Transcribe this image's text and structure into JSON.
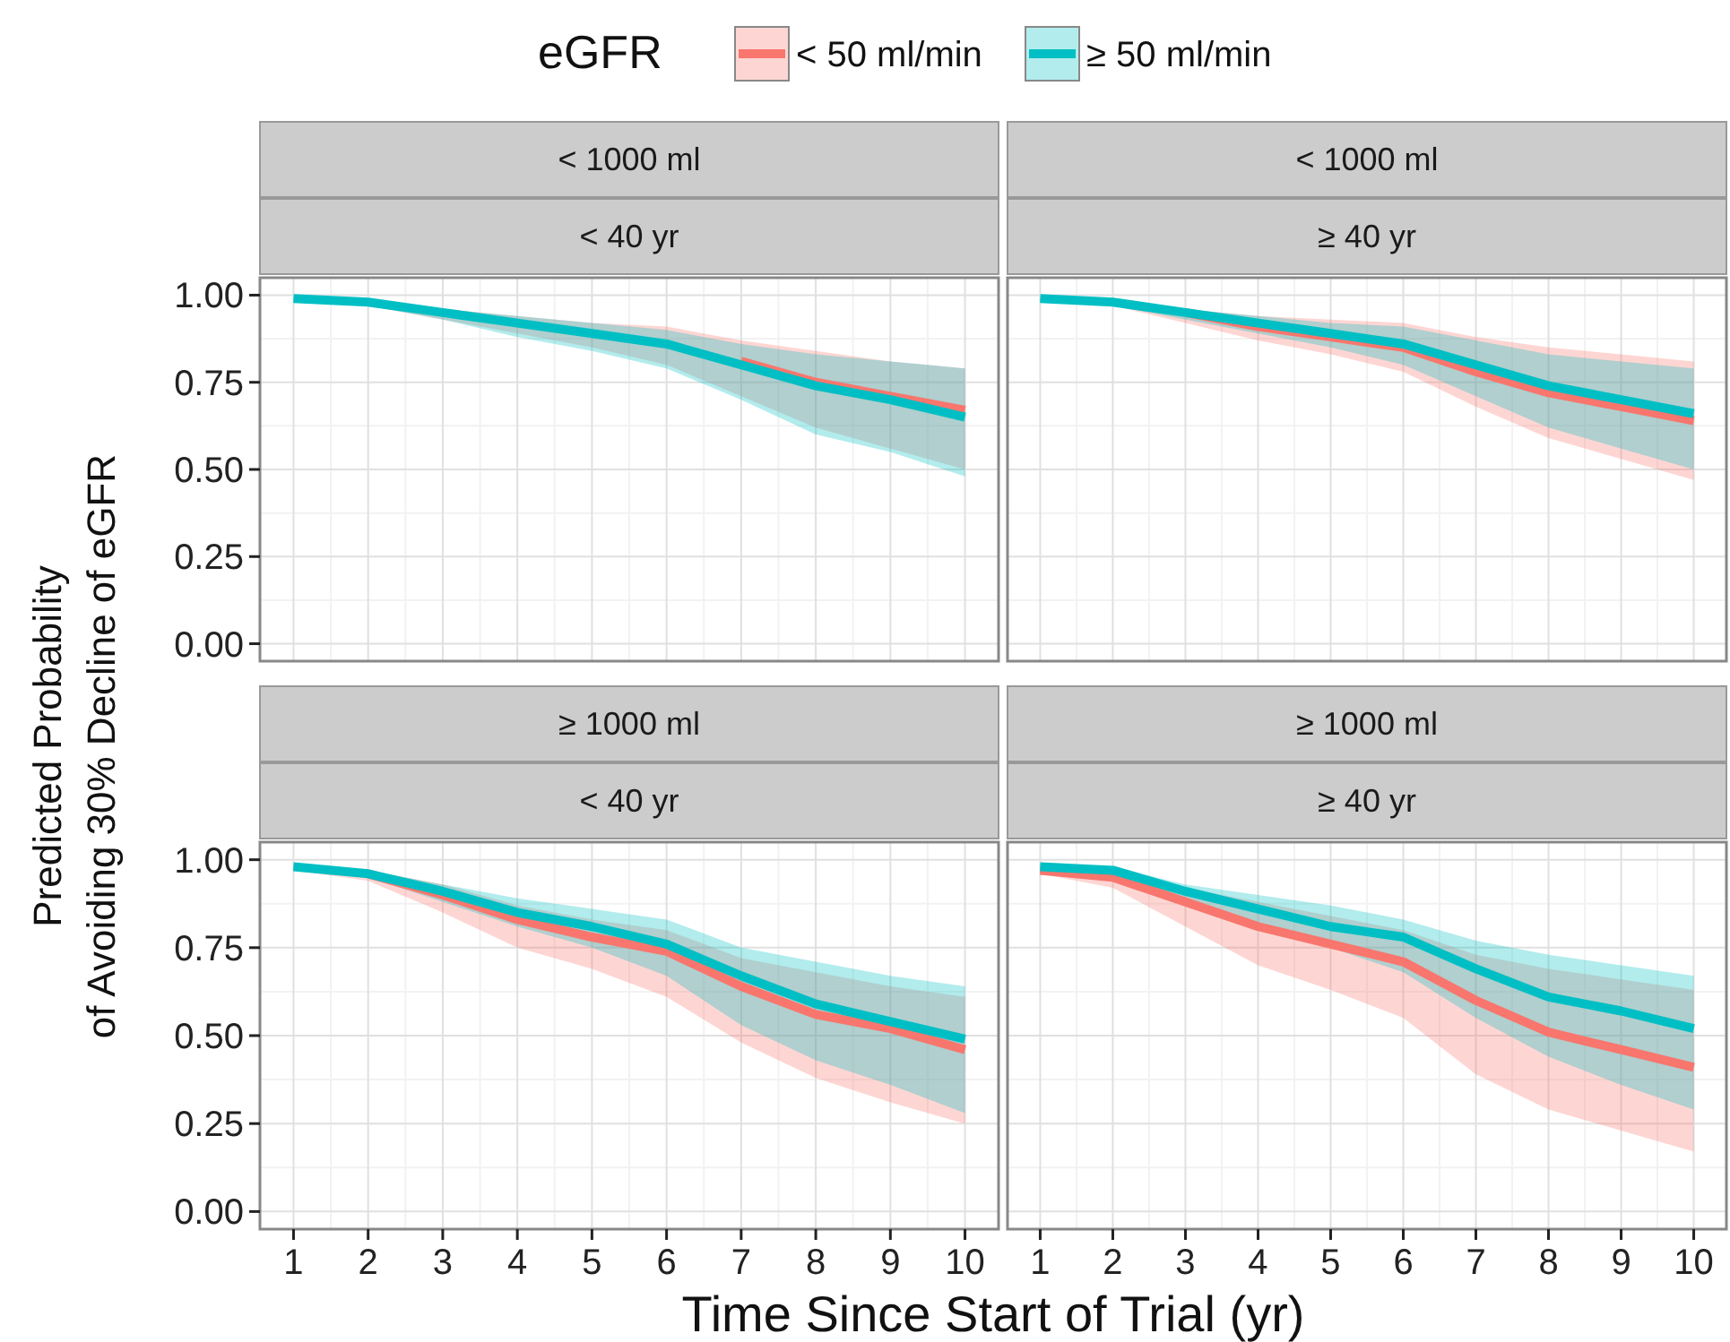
{
  "chart_data": [
    {
      "type": "line",
      "title": "< 1000 ml",
      "subtitle": "< 40 yr",
      "legend_title": "eGFR",
      "legend": "top",
      "grid": true,
      "tick_labels": "y",
      "ylabel": "Predicted Probability\nof Avoiding 30% Decline of eGFR",
      "x": [
        1,
        2,
        3,
        4,
        5,
        6,
        7,
        8,
        9,
        10
      ],
      "xlim": [
        0.55,
        10.45
      ],
      "xticks": [
        1,
        2,
        3,
        4,
        5,
        6,
        7,
        8,
        9,
        10
      ],
      "ylim": [
        -0.05,
        1.05
      ],
      "yticks": [
        {
          "value": 0,
          "label": "0.00"
        },
        {
          "value": 0.25,
          "label": "0.25"
        },
        {
          "value": 0.5,
          "label": "0.50"
        },
        {
          "value": 0.75,
          "label": "0.75"
        },
        {
          "value": 1,
          "label": "1.00"
        }
      ],
      "series": [
        {
          "name": "< 50 ml/min",
          "color": "#f8766d",
          "values": [
            null,
            null,
            null,
            null,
            null,
            null,
            0.81,
            0.75,
            0.71,
            0.67
          ],
          "lower": [
            0.98,
            0.97,
            0.93,
            0.89,
            0.85,
            0.8,
            0.71,
            0.62,
            0.56,
            0.5
          ],
          "upper": [
            0.99,
            0.99,
            0.96,
            0.94,
            0.92,
            0.91,
            0.87,
            0.84,
            0.81,
            0.79
          ]
        },
        {
          "name": "≥ 50 ml/min",
          "color": "#00bfc4",
          "values": [
            0.99,
            0.98,
            0.95,
            0.92,
            0.89,
            0.86,
            0.8,
            0.74,
            0.7,
            0.65
          ],
          "lower": [
            0.98,
            0.97,
            0.93,
            0.88,
            0.84,
            0.79,
            0.7,
            0.6,
            0.55,
            0.48
          ],
          "upper": [
            0.99,
            0.99,
            0.96,
            0.94,
            0.92,
            0.9,
            0.86,
            0.83,
            0.81,
            0.79
          ]
        }
      ]
    },
    {
      "type": "line",
      "title": "< 1000 ml",
      "subtitle": "≥ 40 yr",
      "grid": true,
      "tick_labels": false,
      "x": [
        1,
        2,
        3,
        4,
        5,
        6,
        7,
        8,
        9,
        10
      ],
      "xlim": [
        0.55,
        10.45
      ],
      "xticks": [
        1,
        2,
        3,
        4,
        5,
        6,
        7,
        8,
        9,
        10
      ],
      "ylim": [
        -0.05,
        1.05
      ],
      "yticks": [
        {
          "value": 0,
          "label": null
        },
        {
          "value": 0.25,
          "label": null
        },
        {
          "value": 0.5,
          "label": null
        },
        {
          "value": 0.75,
          "label": null
        },
        {
          "value": 1,
          "label": null
        }
      ],
      "series": [
        {
          "color": "#f8766d",
          "values": [
            null,
            null,
            0.95,
            0.91,
            0.88,
            0.85,
            0.78,
            0.72,
            0.68,
            0.64
          ],
          "lower": [
            0.98,
            0.97,
            0.92,
            0.87,
            0.83,
            0.78,
            0.68,
            0.59,
            0.53,
            0.47
          ],
          "upper": [
            0.99,
            0.99,
            0.96,
            0.94,
            0.93,
            0.92,
            0.88,
            0.85,
            0.83,
            0.81
          ]
        },
        {
          "color": "#00bfc4",
          "values": [
            0.99,
            0.98,
            0.95,
            0.92,
            0.89,
            0.86,
            0.8,
            0.74,
            0.7,
            0.66
          ],
          "lower": [
            0.98,
            0.97,
            0.93,
            0.89,
            0.85,
            0.8,
            0.71,
            0.62,
            0.56,
            0.5
          ],
          "upper": [
            0.99,
            0.99,
            0.96,
            0.94,
            0.92,
            0.91,
            0.87,
            0.83,
            0.81,
            0.79
          ]
        }
      ]
    },
    {
      "type": "line",
      "title": "≥ 1000 ml",
      "subtitle": "< 40 yr",
      "grid": true,
      "xlabel": "Time Since Start of Trial (yr)",
      "x": [
        1,
        2,
        3,
        4,
        5,
        6,
        7,
        8,
        9,
        10
      ],
      "xlim": [
        0.55,
        10.45
      ],
      "xticks": [
        1,
        2,
        3,
        4,
        5,
        6,
        7,
        8,
        9,
        10
      ],
      "ylim": [
        -0.05,
        1.05
      ],
      "yticks": [
        {
          "value": 0,
          "label": "0.00"
        },
        {
          "value": 0.25,
          "label": "0.25"
        },
        {
          "value": 0.5,
          "label": "0.50"
        },
        {
          "value": 0.75,
          "label": "0.75"
        },
        {
          "value": 1,
          "label": "1.00"
        }
      ],
      "series": [
        {
          "color": "#f8766d",
          "values": [
            null,
            0.96,
            0.9,
            0.83,
            0.78,
            0.74,
            0.64,
            0.56,
            0.52,
            0.46
          ],
          "lower": [
            0.97,
            0.94,
            0.85,
            0.75,
            0.69,
            0.61,
            0.48,
            0.38,
            0.31,
            0.25
          ],
          "upper": [
            0.99,
            0.97,
            0.93,
            0.87,
            0.83,
            0.8,
            0.72,
            0.68,
            0.64,
            0.61
          ]
        },
        {
          "color": "#00bfc4",
          "values": [
            0.98,
            0.96,
            0.91,
            0.85,
            0.81,
            0.76,
            0.67,
            0.59,
            0.54,
            0.49
          ],
          "lower": [
            0.97,
            0.95,
            0.88,
            0.81,
            0.75,
            0.67,
            0.53,
            0.43,
            0.36,
            0.28
          ],
          "upper": [
            0.99,
            0.97,
            0.93,
            0.89,
            0.86,
            0.83,
            0.75,
            0.71,
            0.67,
            0.64
          ]
        }
      ]
    },
    {
      "type": "line",
      "title": "≥ 1000 ml",
      "subtitle": "≥ 40 yr",
      "grid": true,
      "tick_labels": "x",
      "x": [
        1,
        2,
        3,
        4,
        5,
        6,
        7,
        8,
        9,
        10
      ],
      "xlim": [
        0.55,
        10.45
      ],
      "xticks": [
        1,
        2,
        3,
        4,
        5,
        6,
        7,
        8,
        9,
        10
      ],
      "ylim": [
        -0.05,
        1.05
      ],
      "yticks": [
        {
          "value": 0,
          "label": null
        },
        {
          "value": 0.25,
          "label": null
        },
        {
          "value": 0.5,
          "label": null
        },
        {
          "value": 0.75,
          "label": null
        },
        {
          "value": 1,
          "label": null
        }
      ],
      "series": [
        {
          "color": "#f8766d",
          "values": [
            0.97,
            0.95,
            0.88,
            0.81,
            0.76,
            0.71,
            0.6,
            0.51,
            0.46,
            0.41
          ],
          "lower": [
            0.96,
            0.92,
            0.81,
            0.7,
            0.63,
            0.55,
            0.39,
            0.29,
            0.23,
            0.17
          ],
          "upper": [
            0.98,
            0.96,
            0.92,
            0.88,
            0.84,
            0.8,
            0.73,
            0.69,
            0.66,
            0.63
          ]
        },
        {
          "color": "#00bfc4",
          "values": [
            0.98,
            0.97,
            0.91,
            0.86,
            0.81,
            0.78,
            0.69,
            0.61,
            0.57,
            0.52
          ],
          "lower": [
            0.97,
            0.95,
            0.89,
            0.81,
            0.75,
            0.68,
            0.55,
            0.44,
            0.36,
            0.29
          ],
          "upper": [
            0.99,
            0.98,
            0.93,
            0.9,
            0.87,
            0.83,
            0.77,
            0.73,
            0.7,
            0.67
          ]
        }
      ]
    }
  ]
}
